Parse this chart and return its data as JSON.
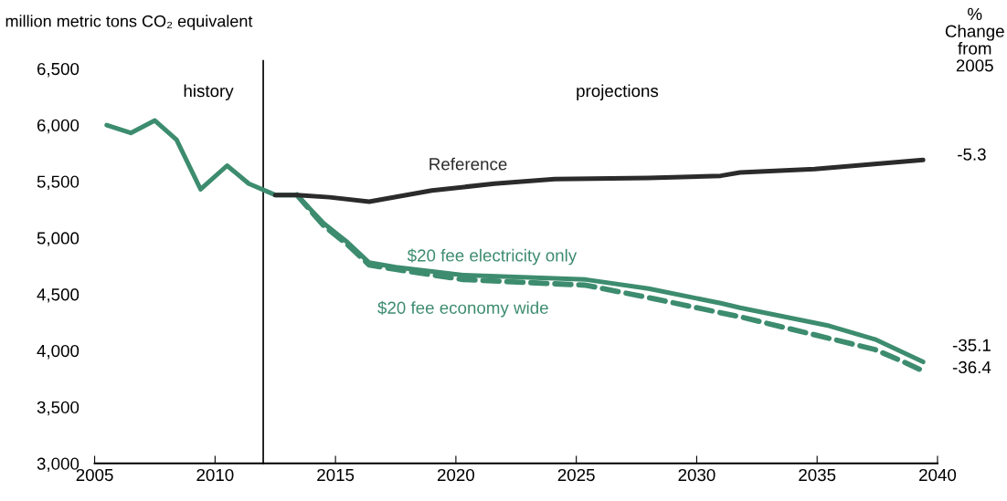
{
  "chart_data": {
    "type": "line",
    "ylabel": "million metric tons CO₂ equivalent",
    "series": [
      {
        "name": "Reference",
        "color": "#2b2b2b",
        "x": [
          2012.5,
          2013.4,
          2014.75,
          2016.4,
          2019,
          2021.6,
          2024.1,
          2028,
          2031,
          2031.8,
          2034.9,
          2039.4
        ],
        "values": [
          5380,
          5380,
          5360,
          5320,
          5420,
          5480,
          5520,
          5530,
          5550,
          5580,
          5610,
          5690
        ]
      },
      {
        "name": "$20 fee electricity only",
        "color": "#3d8c6f",
        "x": [
          2005.5,
          2006.5,
          2007.5,
          2008.4,
          2009.4,
          2010.5,
          2011.4,
          2012.5,
          2013.4,
          2014.5,
          2015.5,
          2016.4,
          2017.5,
          2020.3,
          2025.4,
          2028,
          2031,
          2031.8,
          2035.5,
          2037.4,
          2039.4
        ],
        "values": [
          6000,
          5930,
          6040,
          5870,
          5430,
          5640,
          5480,
          5380,
          5380,
          5130,
          4960,
          4780,
          4740,
          4670,
          4630,
          4550,
          4420,
          4380,
          4220,
          4100,
          3900
        ]
      },
      {
        "name": "$20 fee economy wide",
        "color": "#3d8c6f",
        "line_style": "dashed",
        "x": [
          2013.4,
          2014.5,
          2015.5,
          2016.4,
          2017.5,
          2020.3,
          2025.4,
          2028,
          2031.8,
          2034.9,
          2037.4,
          2038.7,
          2039.4
        ],
        "values": [
          5380,
          5110,
          4940,
          4760,
          4720,
          4630,
          4580,
          4470,
          4300,
          4140,
          4010,
          3890,
          3820
        ]
      }
    ],
    "xlim": [
      2005,
      2040
    ],
    "xticks": [
      2005,
      2010,
      2015,
      2020,
      2025,
      2030,
      2035,
      2040
    ],
    "ylim": [
      3000,
      6500
    ],
    "yticks": [
      {
        "value": 3000,
        "label": "3,000"
      },
      {
        "value": 3500,
        "label": "3,500"
      },
      {
        "value": 4000,
        "label": "4,000"
      },
      {
        "value": 4500,
        "label": "4,500"
      },
      {
        "value": 5000,
        "label": "5,000"
      },
      {
        "value": 5500,
        "label": "5,500"
      },
      {
        "value": 6000,
        "label": "6,000"
      },
      {
        "value": 6500,
        "label": "6,500"
      }
    ],
    "ref_lines": [
      {
        "axis": "x",
        "value": 2012,
        "color": "#000000"
      }
    ],
    "annotations": [
      "history",
      "projections",
      "%\nChange\nfrom\n2005",
      "-5.3",
      "-35.1",
      "-36.4"
    ],
    "grid": false,
    "legend": false,
    "marker": "none"
  }
}
